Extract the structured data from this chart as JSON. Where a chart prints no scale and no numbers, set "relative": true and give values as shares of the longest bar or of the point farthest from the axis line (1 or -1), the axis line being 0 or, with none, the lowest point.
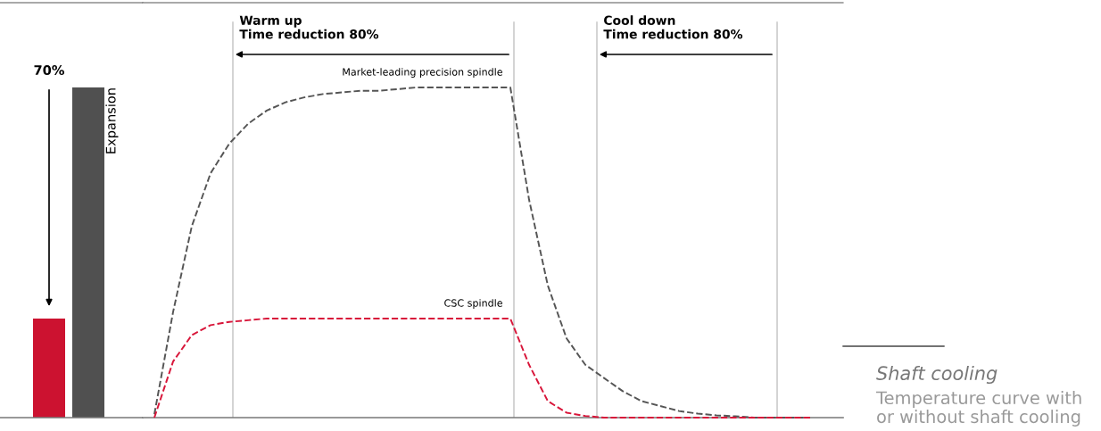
{
  "chart_data": [
    {
      "type": "bar",
      "relative": true,
      "categories": [
        null,
        null
      ],
      "values": [
        0.3,
        1.0
      ],
      "colors": [
        "#cc1230",
        "#505050"
      ],
      "annotations": [
        "70%",
        "Expansion"
      ]
    },
    {
      "type": "line",
      "relative": true,
      "line_style": "dashed",
      "categories": [
        null,
        null,
        null,
        null,
        null,
        null,
        null,
        null,
        null,
        null,
        null,
        null,
        null,
        null,
        null,
        null,
        null,
        null,
        null,
        null,
        null,
        null,
        null,
        null,
        null,
        null,
        null,
        null,
        null,
        null,
        null,
        null,
        null,
        null,
        null,
        null
      ],
      "series": [
        {
          "name": "Market-leading precision spindle",
          "color": "#555555",
          "values": [
            0.01,
            0.32,
            0.58,
            0.74,
            0.83,
            0.89,
            0.93,
            0.955,
            0.97,
            0.98,
            0.985,
            0.99,
            0.99,
            0.995,
            1.0,
            1.0,
            1.0,
            1.0,
            1.0,
            1.0,
            0.66,
            0.4,
            0.24,
            0.16,
            0.12,
            0.08,
            0.05,
            0.035,
            0.02,
            0.012,
            0.007,
            0.004,
            0.0,
            0.0,
            0.0,
            0.0
          ]
        },
        {
          "name": "CSC spindle",
          "color": "#d8163a",
          "values": [
            0.0,
            0.17,
            0.25,
            0.28,
            0.29,
            0.295,
            0.3,
            0.3,
            0.3,
            0.3,
            0.3,
            0.3,
            0.3,
            0.3,
            0.3,
            0.3,
            0.3,
            0.3,
            0.3,
            0.3,
            0.16,
            0.05,
            0.015,
            0.005,
            0.0,
            0.0,
            0.0,
            0.0,
            0.0,
            0.0,
            0.0,
            0.0,
            0.0,
            0.0,
            0.0,
            0.0
          ]
        }
      ],
      "annotations": [
        "Warm up\nTime reduction 80%",
        "Cool down\nTime reduction 80%"
      ]
    },
    {
      "type": "other",
      "title": "Shaft cooling",
      "subtitle": "Temperature curve with or without shaft cooling"
    }
  ]
}
